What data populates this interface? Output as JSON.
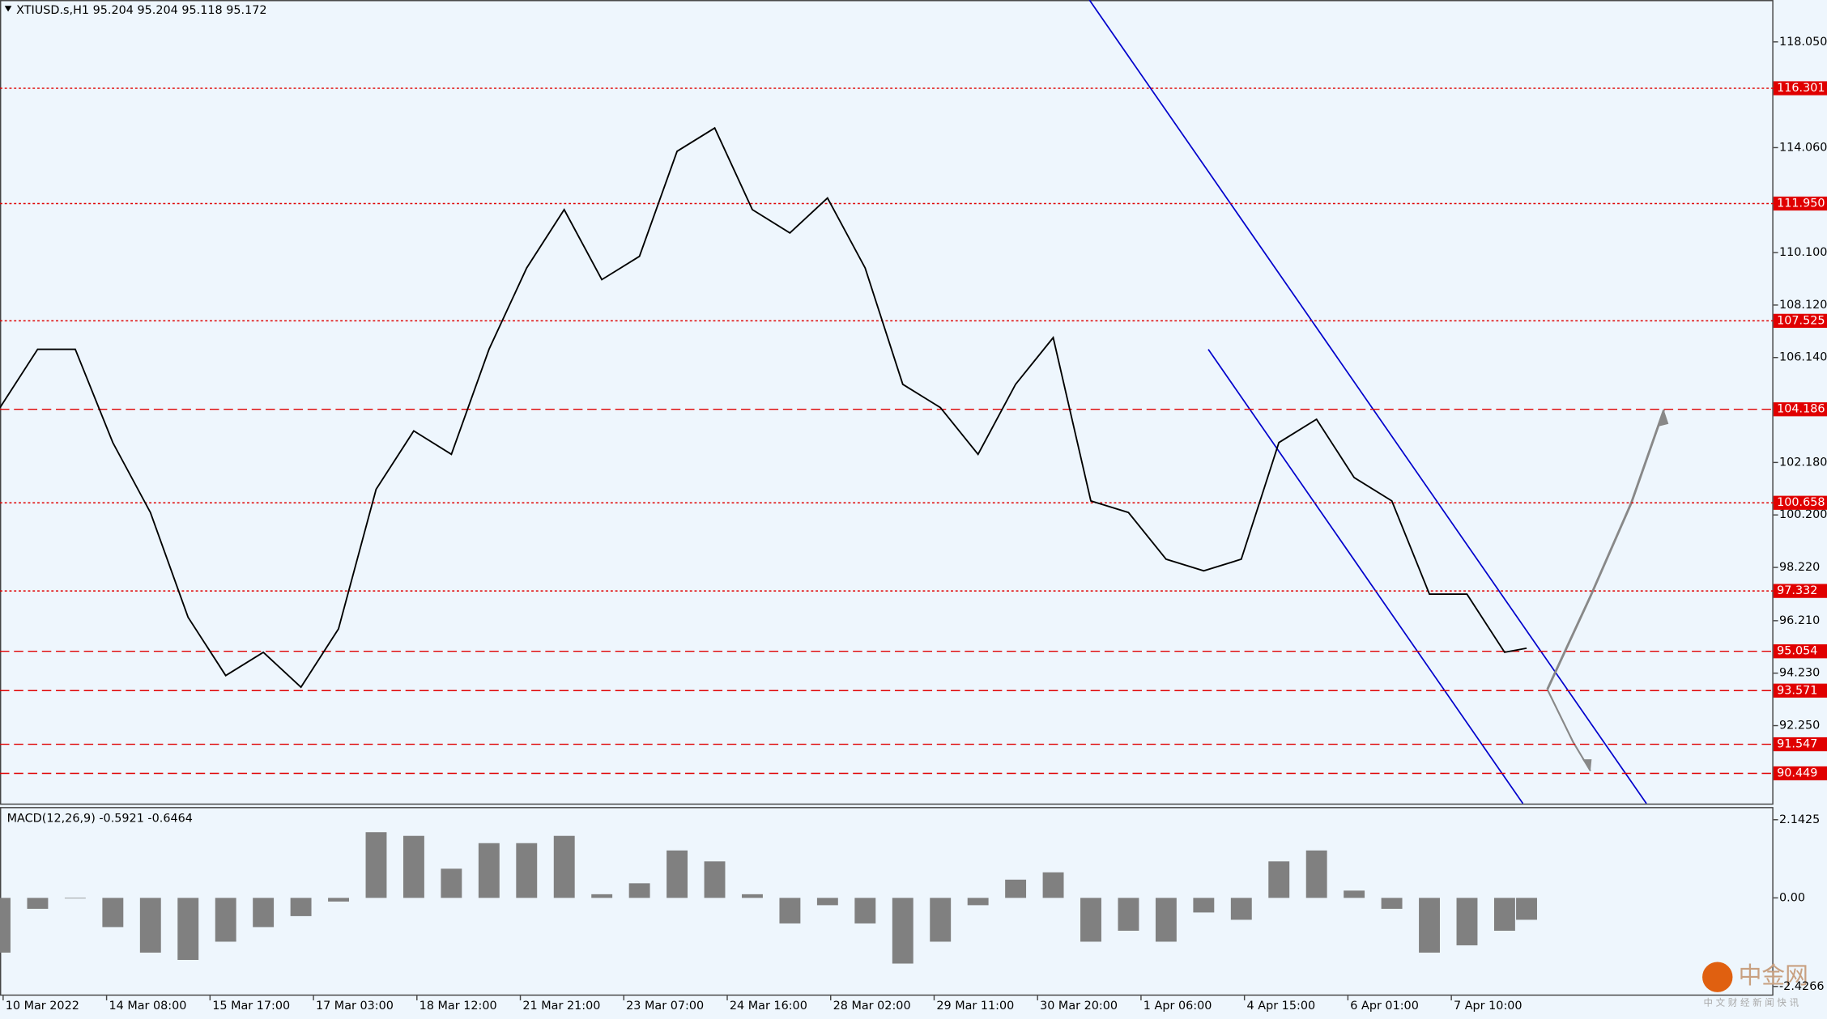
{
  "chart_data": {
    "type": "line",
    "title": "XTIUSD.s,H1  95.204 95.204 95.118 95.172",
    "x": [
      0,
      12,
      24,
      36,
      48,
      60,
      72,
      84,
      96,
      108,
      120,
      132,
      144,
      156,
      168,
      180,
      192,
      204,
      216,
      228,
      240,
      252,
      264,
      276,
      288,
      300,
      312,
      324,
      336,
      348,
      360,
      372,
      384,
      396,
      408,
      420,
      432,
      444,
      456,
      468,
      480,
      487
    ],
    "series": [
      {
        "name": "XTIUSD.s",
        "color": "#000000",
        "values": [
          104.25,
          106.45,
          106.45,
          102.93,
          100.29,
          96.34,
          94.14,
          95.02,
          93.7,
          95.9,
          101.17,
          103.37,
          102.49,
          106.45,
          109.52,
          111.72,
          109.08,
          109.96,
          113.92,
          114.8,
          111.72,
          110.84,
          112.16,
          109.52,
          105.13,
          104.25,
          102.49,
          105.13,
          106.89,
          100.73,
          100.29,
          98.53,
          98.09,
          98.53,
          102.93,
          103.81,
          101.61,
          100.73,
          97.21,
          97.21,
          95.02,
          95.17
        ]
      }
    ],
    "xlim": [
      0,
      565
    ],
    "ylim": [
      89.31,
      119.63
    ],
    "yticks": [
      {
        "value": 118.05,
        "label": "118.050"
      },
      {
        "value": 114.06,
        "label": "114.060"
      },
      {
        "value": 110.1,
        "label": "110.100"
      },
      {
        "value": 108.12,
        "label": "108.120"
      },
      {
        "value": 106.14,
        "label": "106.140"
      },
      {
        "value": 102.18,
        "label": "102.180"
      },
      {
        "value": 100.2,
        "label": "100.200"
      },
      {
        "value": 98.22,
        "label": "98.220"
      },
      {
        "value": 96.21,
        "label": "96.210"
      },
      {
        "value": 94.23,
        "label": "94.230"
      },
      {
        "value": 92.25,
        "label": "92.250"
      }
    ],
    "xticks": [
      {
        "value": 1,
        "label": "10 Mar 2022"
      },
      {
        "value": 34,
        "label": "14 Mar 08:00"
      },
      {
        "value": 67,
        "label": "15 Mar 17:00"
      },
      {
        "value": 100,
        "label": "17 Mar 03:00"
      },
      {
        "value": 133,
        "label": "18 Mar 12:00"
      },
      {
        "value": 166,
        "label": "21 Mar 21:00"
      },
      {
        "value": 199,
        "label": "23 Mar 07:00"
      },
      {
        "value": 232,
        "label": "24 Mar 16:00"
      },
      {
        "value": 265,
        "label": "28 Mar 02:00"
      },
      {
        "value": 298,
        "label": "29 Mar 11:00"
      },
      {
        "value": 331,
        "label": "30 Mar 20:00"
      },
      {
        "value": 364,
        "label": "1 Apr 06:00"
      },
      {
        "value": 397,
        "label": "4 Apr 15:00"
      },
      {
        "value": 430,
        "label": "6 Apr 01:00"
      },
      {
        "value": 463,
        "label": "7 Apr 10:00"
      }
    ],
    "levels": [
      {
        "value": 116.301,
        "label": "116.301",
        "style": "dotted"
      },
      {
        "value": 111.95,
        "label": "111.950",
        "style": "dotted"
      },
      {
        "value": 107.525,
        "label": "107.525",
        "style": "dotted"
      },
      {
        "value": 104.186,
        "label": "104.186",
        "style": "dashed"
      },
      {
        "value": 100.658,
        "label": "100.658",
        "style": "dotted"
      },
      {
        "value": 97.332,
        "label": "97.332",
        "style": "dotted"
      },
      {
        "value": 95.054,
        "label": "95.054",
        "style": "dashed"
      },
      {
        "value": 93.571,
        "label": "93.571",
        "style": "dashed"
      },
      {
        "value": 91.547,
        "label": "91.547",
        "style": "dashed"
      },
      {
        "value": 90.449,
        "label": "90.449",
        "style": "dashed"
      }
    ],
    "level_color": "#e00000",
    "macd": {
      "title": "MACD(12,26,9) -0.5921 -0.6464",
      "color": "#808080",
      "values": [
        -1.5,
        -0.3,
        0.0,
        -0.8,
        -1.5,
        -1.7,
        -1.2,
        -0.8,
        -0.5,
        -0.1,
        1.8,
        1.7,
        0.8,
        1.5,
        1.5,
        1.7,
        0.1,
        0.4,
        1.3,
        1.0,
        0.1,
        -0.7,
        -0.2,
        -0.7,
        -1.8,
        -1.2,
        -0.2,
        0.5,
        0.7,
        -1.2,
        -0.9,
        -1.2,
        -0.4,
        -0.6,
        1.0,
        1.3,
        0.2,
        -0.3,
        -1.5,
        -1.3,
        -0.9,
        -0.6
      ],
      "ylim": [
        -2.68,
        2.458
      ],
      "yticks": [
        2.1425,
        {
          "value": 0,
          "label": "0.00"
        },
        -2.4266
      ]
    },
    "watermark": "中金网",
    "watermark_sub": "中 文 财 经 新 闻 快 讯"
  }
}
